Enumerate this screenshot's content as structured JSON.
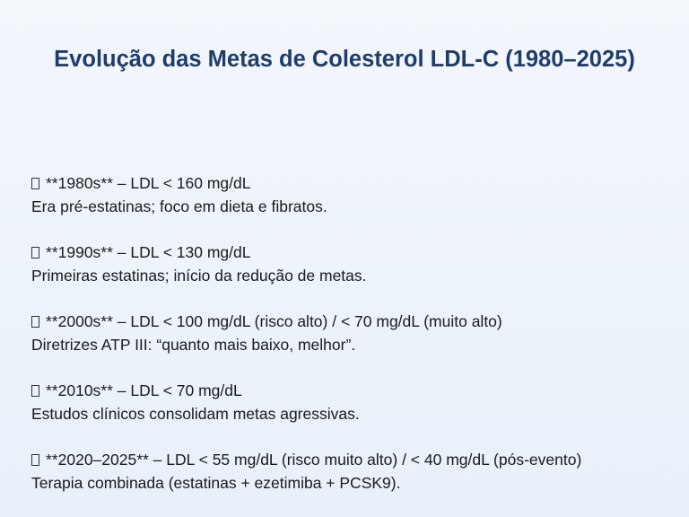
{
  "slide": {
    "title": "Evolução das Metas de Colesterol LDL-C (1980–2025)",
    "entries": [
      {
        "heading": "**1980s** – LDL < 160 mg/dL",
        "description": "Era pré-estatinas; foco em dieta e fibratos."
      },
      {
        "heading": "**1990s** – LDL < 130 mg/dL",
        "description": "Primeiras estatinas; início da redução de metas."
      },
      {
        "heading": "**2000s** – LDL < 100 mg/dL (risco alto) / < 70 mg/dL (muito alto)",
        "description": "Diretrizes ATP III: “quanto mais baixo, melhor”."
      },
      {
        "heading": "**2010s** – LDL < 70 mg/dL",
        "description": "Estudos clínicos consolidam metas agressivas."
      },
      {
        "heading": "**2020–2025** – LDL < 55 mg/dL (risco muito alto) / < 40 mg/dL (pós-evento)",
        "description": "Terapia combinada (estatinas + ezetimiba + PCSK9)."
      }
    ]
  }
}
